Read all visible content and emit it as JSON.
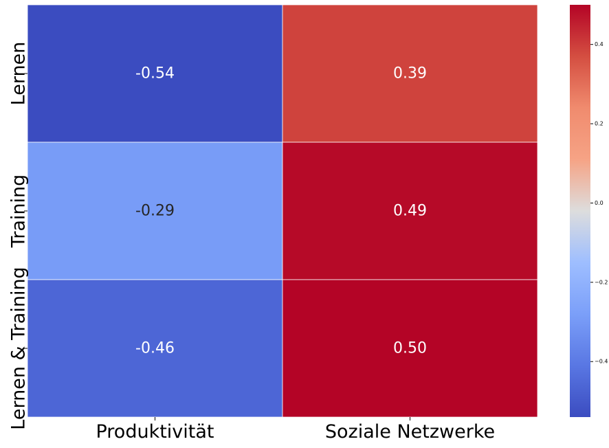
{
  "chart_data": {
    "type": "heatmap",
    "title": "",
    "xlabel": "",
    "ylabel": "",
    "x_categories": [
      "Produktivität",
      "Soziale Netzwerke"
    ],
    "y_categories": [
      "Lernen",
      "Training",
      "Lernen & Training"
    ],
    "values": [
      [
        -0.54,
        0.39
      ],
      [
        -0.29,
        0.49
      ],
      [
        -0.46,
        0.5
      ]
    ],
    "cell_labels": [
      [
        "-0.54",
        "0.39"
      ],
      [
        "-0.29",
        "0.49"
      ],
      [
        "-0.46",
        "0.50"
      ]
    ],
    "colormap": "coolwarm",
    "colorbar": {
      "vmin": -0.54,
      "vmax": 0.5,
      "ticks": [
        -0.4,
        -0.2,
        0.0,
        0.2,
        0.4
      ],
      "tick_labels": [
        "−0.4",
        "−0.2",
        "0.0",
        "0.2",
        "0.4"
      ]
    },
    "grid": false,
    "legend": "colorbar-right"
  }
}
